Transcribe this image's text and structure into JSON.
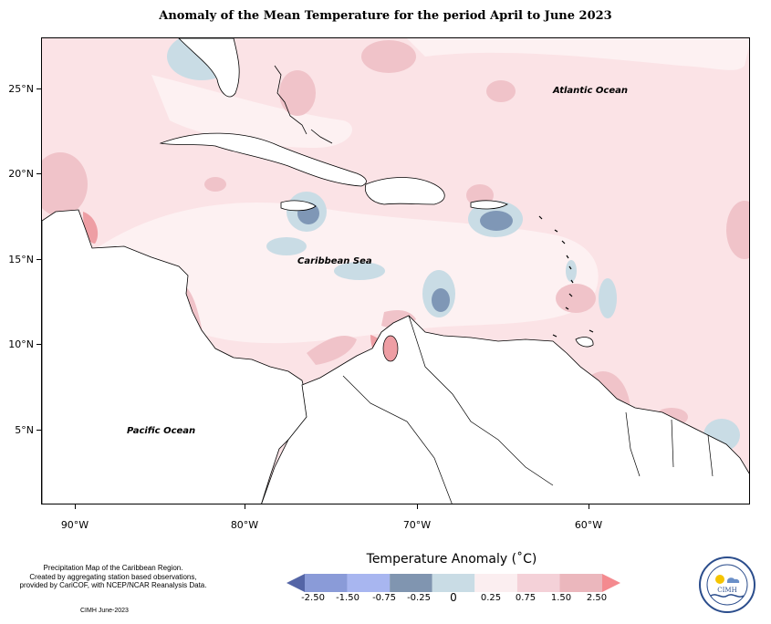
{
  "title": "Anomaly of the Mean Temperature for the period April to June 2023",
  "map": {
    "lat_ticks": [
      "25°N",
      "20°N",
      "15°N",
      "10°N",
      "5°N"
    ],
    "lon_ticks": [
      "90°W",
      "80°W",
      "70°W",
      "60°W"
    ],
    "lat_values": [
      25,
      20,
      15,
      10,
      5
    ],
    "lon_values": [
      -90,
      -80,
      -70,
      -60
    ],
    "extent": {
      "lon_min": -92,
      "lon_max": -51,
      "lat_min": 1.5,
      "lat_max": 28.3
    },
    "ocean_labels": {
      "atlantic": "Atlantic Ocean",
      "caribbean": "Caribbean Sea",
      "pacific": "Pacific Ocean"
    }
  },
  "legend": {
    "title": "Temperature Anomaly (˚C)",
    "bins": [
      {
        "color": "#5465a6"
      },
      {
        "color": "#8a9bd8"
      },
      {
        "color": "#a8b6f0"
      },
      {
        "color": "#8095b0"
      },
      {
        "color": "#c9dce5"
      },
      {
        "color": "#fbeef0"
      },
      {
        "color": "#f4d1d8"
      },
      {
        "color": "#ebb7bd"
      },
      {
        "color": "#f48a8f"
      }
    ],
    "labels": [
      "-2.50",
      "-1.50",
      "-0.75",
      "-0.25",
      "0",
      "0.25",
      "0.75",
      "1.50",
      "2.50"
    ]
  },
  "credit": {
    "line1": "Precipitation Map of the Caribbean Region.",
    "line2": "Created by aggregating station based observations,",
    "line3": "provided by CariCOF, with NCEP/NCAR Reanalysis Data.",
    "date": "CIMH June-2023"
  },
  "logo": {
    "name": "CIMH",
    "ring_text": "Caribbean Institute for Meteorology and Hydrology"
  },
  "colors": {
    "land": "#ffffff",
    "base_anomaly": "#fbe3e6",
    "light_anomaly": "#fdf1f2",
    "warm_anomaly": "#f0c3c9",
    "hot_anomaly": "#ee9ea4",
    "cool_anomaly": "#c9dce5",
    "cold_anomaly": "#7f97b6"
  }
}
